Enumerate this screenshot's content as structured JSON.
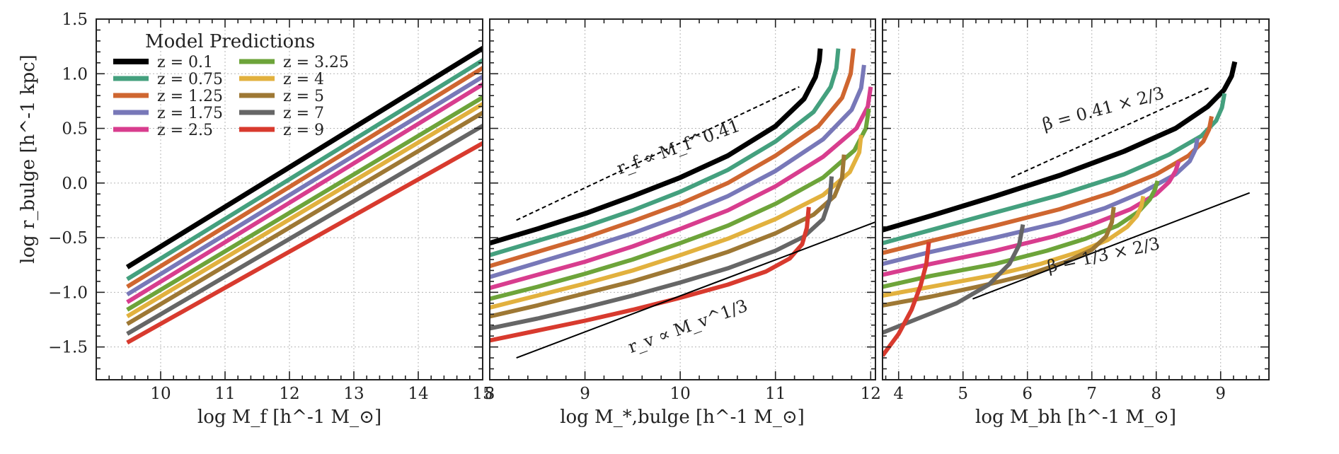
{
  "figure": {
    "ylabel": "log r_bulge [h^-1 kpc]",
    "ylim": [
      -1.8,
      1.5
    ],
    "yticks": [
      -1.5,
      -1.0,
      -0.5,
      0.0,
      0.5,
      1.0,
      1.5
    ],
    "ytick_labels": [
      "−1.5",
      "−1.0",
      "−0.5",
      "0.0",
      "0.5",
      "1.0",
      "1.5"
    ],
    "legend_title": "Model Predictions"
  },
  "chart_data": [
    {
      "type": "line",
      "xlabel": "log M_f [h^-1 M_⊙]",
      "xlim": [
        9.0,
        15.0
      ],
      "xticks": [
        10,
        11,
        12,
        13,
        14,
        15
      ],
      "xtick_labels": [
        "10",
        "11",
        "12",
        "13",
        "14",
        "15"
      ],
      "series": [
        {
          "name": "z = 0.1",
          "color": "#000000",
          "x": [
            9.48,
            15.02
          ],
          "y": [
            -0.77,
            1.24
          ]
        },
        {
          "name": "z = 0.75",
          "color": "#44a07e",
          "x": [
            9.48,
            15.02
          ],
          "y": [
            -0.88,
            1.13
          ]
        },
        {
          "name": "z = 1.25",
          "color": "#cf6630",
          "x": [
            9.48,
            15.02
          ],
          "y": [
            -0.95,
            1.06
          ]
        },
        {
          "name": "z = 1.75",
          "color": "#7878b8",
          "x": [
            9.48,
            15.02
          ],
          "y": [
            -1.02,
            0.98
          ]
        },
        {
          "name": "z = 2.5",
          "color": "#d83d8e",
          "x": [
            9.48,
            15.02
          ],
          "y": [
            -1.09,
            0.91
          ]
        },
        {
          "name": "z = 3.25",
          "color": "#6da43a",
          "x": [
            9.48,
            15.02
          ],
          "y": [
            -1.16,
            0.79
          ]
        },
        {
          "name": "z = 4",
          "color": "#e2b13e",
          "x": [
            9.48,
            15.02
          ],
          "y": [
            -1.22,
            0.73
          ]
        },
        {
          "name": "z = 5",
          "color": "#9e7834",
          "x": [
            9.48,
            15.02
          ],
          "y": [
            -1.29,
            0.65
          ]
        },
        {
          "name": "z = 7",
          "color": "#666666",
          "x": [
            9.48,
            15.02
          ],
          "y": [
            -1.38,
            0.53
          ]
        },
        {
          "name": "z = 9",
          "color": "#d83a2e",
          "x": [
            9.48,
            15.02
          ],
          "y": [
            -1.46,
            0.37
          ]
        }
      ]
    },
    {
      "type": "line",
      "xlabel": "log M_*,bulge [h^-1 M_⊙]",
      "xlim": [
        8.0,
        12.05
      ],
      "xticks": [
        8,
        9,
        10,
        11,
        12
      ],
      "xtick_labels": [
        "8",
        "9",
        "10",
        "11",
        "12"
      ],
      "series": [
        {
          "name": "z = 0.1",
          "color": "#000000",
          "x": [
            8.0,
            8.5,
            9.0,
            9.5,
            10.0,
            10.5,
            11.0,
            11.3,
            11.42,
            11.46,
            11.47
          ],
          "y": [
            -0.55,
            -0.42,
            -0.28,
            -0.12,
            0.05,
            0.25,
            0.52,
            0.77,
            0.97,
            1.12,
            1.23
          ]
        },
        {
          "name": "z = 0.75",
          "color": "#44a07e",
          "x": [
            8.0,
            8.5,
            9.0,
            9.5,
            10.0,
            10.5,
            11.0,
            11.4,
            11.58,
            11.64,
            11.66
          ],
          "y": [
            -0.66,
            -0.53,
            -0.4,
            -0.25,
            -0.08,
            0.12,
            0.38,
            0.65,
            0.88,
            1.05,
            1.23
          ]
        },
        {
          "name": "z = 1.25",
          "color": "#cf6630",
          "x": [
            8.0,
            8.5,
            9.0,
            9.5,
            10.0,
            10.5,
            11.0,
            11.45,
            11.7,
            11.79,
            11.82
          ],
          "y": [
            -0.76,
            -0.63,
            -0.5,
            -0.35,
            -0.19,
            0.0,
            0.25,
            0.52,
            0.78,
            1.0,
            1.23
          ]
        },
        {
          "name": "z = 1.75",
          "color": "#7878b8",
          "x": [
            8.0,
            8.5,
            9.0,
            9.5,
            10.0,
            10.5,
            11.0,
            11.5,
            11.8,
            11.9,
            11.93
          ],
          "y": [
            -0.86,
            -0.73,
            -0.6,
            -0.46,
            -0.3,
            -0.12,
            0.11,
            0.4,
            0.67,
            0.87,
            1.08
          ]
        },
        {
          "name": "z = 2.5",
          "color": "#d83d8e",
          "x": [
            8.0,
            8.5,
            9.0,
            9.5,
            10.0,
            10.5,
            11.0,
            11.5,
            11.85,
            11.97,
            12.0
          ],
          "y": [
            -0.96,
            -0.84,
            -0.72,
            -0.58,
            -0.42,
            -0.25,
            -0.03,
            0.24,
            0.5,
            0.7,
            0.88
          ]
        },
        {
          "name": "z = 3.25",
          "color": "#6da43a",
          "x": [
            8.0,
            8.5,
            9.0,
            9.5,
            10.0,
            10.5,
            11.0,
            11.5,
            11.83,
            11.95,
            11.98
          ],
          "y": [
            -1.06,
            -0.95,
            -0.83,
            -0.7,
            -0.55,
            -0.39,
            -0.19,
            0.05,
            0.3,
            0.5,
            0.68
          ]
        },
        {
          "name": "z = 4",
          "color": "#e2b13e",
          "x": [
            8.0,
            8.5,
            9.0,
            9.5,
            10.0,
            10.5,
            11.0,
            11.5,
            11.78,
            11.88,
            11.9
          ],
          "y": [
            -1.14,
            -1.03,
            -0.92,
            -0.8,
            -0.66,
            -0.51,
            -0.33,
            -0.11,
            0.1,
            0.28,
            0.44
          ]
        },
        {
          "name": "z = 5",
          "color": "#9e7834",
          "x": [
            8.0,
            8.5,
            9.0,
            9.5,
            10.0,
            10.5,
            11.0,
            11.4,
            11.62,
            11.7,
            11.72
          ],
          "y": [
            -1.22,
            -1.12,
            -1.01,
            -0.9,
            -0.77,
            -0.63,
            -0.46,
            -0.29,
            -0.12,
            0.05,
            0.26
          ]
        },
        {
          "name": "z = 7",
          "color": "#666666",
          "x": [
            8.0,
            8.5,
            9.0,
            9.5,
            10.0,
            10.5,
            11.0,
            11.3,
            11.5,
            11.57,
            11.59
          ],
          "y": [
            -1.33,
            -1.24,
            -1.14,
            -1.03,
            -0.91,
            -0.78,
            -0.62,
            -0.49,
            -0.33,
            -0.15,
            0.06
          ]
        },
        {
          "name": "z = 9",
          "color": "#d83a2e",
          "x": [
            8.0,
            8.5,
            9.0,
            9.5,
            10.0,
            10.5,
            10.9,
            11.15,
            11.28,
            11.33,
            11.35
          ],
          "y": [
            -1.44,
            -1.35,
            -1.26,
            -1.16,
            -1.05,
            -0.93,
            -0.81,
            -0.69,
            -0.56,
            -0.41,
            -0.22
          ]
        }
      ],
      "reference_lines": [
        {
          "label": "r_f ∝ M_f^0.41",
          "style": "dashed",
          "x": [
            8.28,
            11.25
          ],
          "y": [
            -0.34,
            0.88
          ]
        },
        {
          "label": "r_v ∝ M_v^1/3",
          "style": "solid",
          "x": [
            8.28,
            12.1
          ],
          "y": [
            -1.6,
            -0.34
          ]
        }
      ],
      "annotations": [
        {
          "text": "r_f ∝ M_f^0.41",
          "x": 10.0,
          "y": 0.28,
          "rotation_deg": -20
        },
        {
          "text": "r_v ∝ M_v^1/3",
          "x": 10.1,
          "y": -1.36,
          "rotation_deg": -20
        }
      ]
    },
    {
      "type": "line",
      "xlabel": "log M_bh [h^-1 M_⊙]",
      "xlim": [
        3.75,
        9.75
      ],
      "xticks": [
        4,
        5,
        6,
        7,
        8,
        9
      ],
      "xtick_labels": [
        "4",
        "5",
        "6",
        "7",
        "8",
        "9"
      ],
      "series": [
        {
          "name": "z = 0.1",
          "color": "#000000",
          "x": [
            3.75,
            4.5,
            5.5,
            6.5,
            7.5,
            8.3,
            8.8,
            9.05,
            9.17,
            9.22
          ],
          "y": [
            -0.43,
            -0.3,
            -0.12,
            0.07,
            0.29,
            0.5,
            0.7,
            0.85,
            0.98,
            1.11
          ]
        },
        {
          "name": "z = 0.75",
          "color": "#44a07e",
          "x": [
            3.75,
            4.5,
            5.5,
            6.5,
            7.5,
            8.2,
            8.7,
            8.93,
            9.02,
            9.06
          ],
          "y": [
            -0.55,
            -0.43,
            -0.27,
            -0.11,
            0.08,
            0.26,
            0.43,
            0.57,
            0.69,
            0.82
          ]
        },
        {
          "name": "z = 1.25",
          "color": "#cf6630",
          "x": [
            3.75,
            4.5,
            5.5,
            6.5,
            7.3,
            8.0,
            8.5,
            8.73,
            8.82,
            8.86
          ],
          "y": [
            -0.64,
            -0.53,
            -0.39,
            -0.24,
            -0.09,
            0.08,
            0.25,
            0.38,
            0.49,
            0.61
          ]
        },
        {
          "name": "z = 1.75",
          "color": "#7878b8",
          "x": [
            3.75,
            4.5,
            5.5,
            6.5,
            7.2,
            7.8,
            8.3,
            8.52,
            8.61,
            8.64
          ],
          "y": [
            -0.74,
            -0.63,
            -0.5,
            -0.36,
            -0.23,
            -0.08,
            0.08,
            0.2,
            0.31,
            0.41
          ]
        },
        {
          "name": "z = 2.5",
          "color": "#d83d8e",
          "x": [
            3.75,
            4.5,
            5.5,
            6.4,
            7.0,
            7.6,
            8.0,
            8.2,
            8.3,
            8.35
          ],
          "y": [
            -0.84,
            -0.74,
            -0.62,
            -0.49,
            -0.38,
            -0.24,
            -0.1,
            0.01,
            0.11,
            0.2
          ]
        },
        {
          "name": "z = 3.25",
          "color": "#6da43a",
          "x": [
            3.75,
            4.5,
            5.5,
            6.3,
            6.9,
            7.4,
            7.73,
            7.9,
            7.98,
            8.02
          ],
          "y": [
            -0.95,
            -0.85,
            -0.74,
            -0.62,
            -0.51,
            -0.39,
            -0.26,
            -0.15,
            -0.06,
            0.02
          ]
        },
        {
          "name": "z = 4",
          "color": "#e2b13e",
          "x": [
            3.75,
            4.5,
            5.5,
            6.2,
            6.8,
            7.25,
            7.55,
            7.7,
            7.77,
            7.8
          ],
          "y": [
            -1.03,
            -0.95,
            -0.84,
            -0.74,
            -0.63,
            -0.52,
            -0.4,
            -0.3,
            -0.21,
            -0.12
          ]
        },
        {
          "name": "z = 5",
          "color": "#9e7834",
          "x": [
            3.75,
            4.5,
            5.3,
            6.0,
            6.6,
            7.0,
            7.22,
            7.31,
            7.34
          ],
          "y": [
            -1.12,
            -1.04,
            -0.94,
            -0.84,
            -0.72,
            -0.61,
            -0.49,
            -0.36,
            -0.22
          ]
        },
        {
          "name": "z = 7",
          "color": "#666666",
          "x": [
            3.75,
            4.3,
            4.9,
            5.4,
            5.72,
            5.87,
            5.93
          ],
          "y": [
            -1.37,
            -1.24,
            -1.1,
            -0.93,
            -0.74,
            -0.57,
            -0.38
          ]
        },
        {
          "name": "z = 9",
          "color": "#d83a2e",
          "x": [
            3.75,
            4.0,
            4.2,
            4.34,
            4.43,
            4.47
          ],
          "y": [
            -1.58,
            -1.38,
            -1.16,
            -0.94,
            -0.74,
            -0.54
          ]
        }
      ],
      "reference_lines": [
        {
          "label": "β = 0.41 × 2/3",
          "style": "dashed",
          "x": [
            5.75,
            8.85
          ],
          "y": [
            0.05,
            0.88
          ]
        },
        {
          "label": "β = 1/3 × 2/3",
          "style": "solid",
          "x": [
            5.15,
            9.45
          ],
          "y": [
            -1.06,
            -0.09
          ]
        }
      ],
      "annotations": [
        {
          "text": "β = 0.41 × 2/3",
          "x": 7.2,
          "y": 0.63,
          "rotation_deg": -15
        },
        {
          "text": "β = 1/3 × 2/3",
          "x": 7.2,
          "y": -0.71,
          "rotation_deg": -12
        }
      ]
    }
  ]
}
